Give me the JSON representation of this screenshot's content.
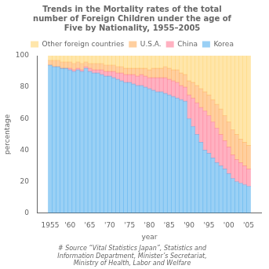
{
  "chart_data": {
    "type": "bar",
    "title": "Trends in the Mortality rates of the total\nnumber of Foreign Children under the age of\nFive by Nationality, 1955–2005",
    "annotation": "# Source “Vital Statistics Japan”, Statistics and\nInformation Department, Minister’s Secretariat,\nMinistry of Health, Labor and Welfare",
    "xlabel": "year",
    "ylabel": "percentage",
    "x": [
      1955,
      1956,
      1957,
      1958,
      1959,
      1960,
      1961,
      1962,
      1963,
      1964,
      1965,
      1966,
      1967,
      1968,
      1969,
      1970,
      1971,
      1972,
      1973,
      1974,
      1975,
      1976,
      1977,
      1978,
      1979,
      1980,
      1981,
      1982,
      1983,
      1984,
      1985,
      1986,
      1987,
      1988,
      1989,
      1990,
      1991,
      1992,
      1993,
      1994,
      1995,
      1996,
      1997,
      1998,
      1999,
      2000,
      2001,
      2002,
      2003,
      2004,
      2005
    ],
    "series": [
      {
        "name": "Korea",
        "values": [
          94,
          93,
          93,
          92,
          92,
          91,
          90,
          91,
          90,
          92,
          90,
          89,
          89,
          88,
          87,
          87,
          86,
          85,
          84,
          83,
          83,
          82,
          81,
          81,
          80,
          79,
          78,
          77,
          77,
          76,
          75,
          74,
          73,
          72,
          71,
          60,
          55,
          50,
          45,
          40,
          38,
          35,
          32,
          30,
          28,
          25,
          22,
          20,
          19,
          18,
          17
        ]
      },
      {
        "name": "China",
        "values": [
          0,
          0,
          0,
          0,
          0,
          1,
          1,
          1,
          1,
          1,
          2,
          2,
          2,
          3,
          3,
          3,
          4,
          4,
          5,
          5,
          5,
          6,
          6,
          7,
          7,
          7,
          8,
          9,
          9,
          10,
          10,
          10,
          10,
          9,
          9,
          15,
          18,
          20,
          22,
          25,
          24,
          23,
          22,
          20,
          18,
          17,
          15,
          14,
          13,
          12,
          11
        ]
      },
      {
        "name": "U.S.A.",
        "values": [
          3,
          4,
          4,
          4,
          4,
          4,
          4,
          4,
          4,
          3,
          3,
          4,
          4,
          4,
          4,
          4,
          4,
          4,
          4,
          4,
          4,
          4,
          5,
          4,
          5,
          5,
          6,
          6,
          6,
          7,
          7,
          7,
          8,
          8,
          8,
          9,
          10,
          11,
          12,
          12,
          13,
          14,
          15,
          16,
          16,
          16,
          16,
          16,
          15,
          15,
          15
        ]
      },
      {
        "name": "Other foreign\ncountries",
        "values": [
          3,
          3,
          3,
          4,
          4,
          4,
          5,
          4,
          5,
          4,
          5,
          5,
          5,
          5,
          6,
          6,
          6,
          7,
          7,
          8,
          8,
          8,
          8,
          8,
          8,
          9,
          8,
          8,
          8,
          7,
          8,
          9,
          9,
          11,
          12,
          16,
          17,
          19,
          21,
          23,
          25,
          28,
          31,
          34,
          38,
          42,
          47,
          50,
          53,
          55,
          57
        ]
      }
    ],
    "stacked": true,
    "xlim": [
      1954.4,
      2005.6
    ],
    "xticks": [
      1955,
      {
        "value": 1960,
        "label": "'60"
      },
      {
        "value": 1965,
        "label": "'65"
      },
      {
        "value": 1970,
        "label": "'70"
      },
      {
        "value": 1975,
        "label": "'75"
      },
      {
        "value": 1980,
        "label": "'80"
      },
      {
        "value": 1985,
        "label": "'85"
      },
      {
        "value": 1990,
        "label": "'90"
      },
      {
        "value": 1995,
        "label": "'95"
      },
      {
        "value": 2000,
        "label": "'00"
      },
      {
        "value": 2005,
        "label": "'05"
      }
    ],
    "ylim": [
      0,
      100
    ],
    "yticks": [
      0,
      20,
      40,
      60,
      80,
      100
    ],
    "grid": false,
    "legend": "top"
  }
}
